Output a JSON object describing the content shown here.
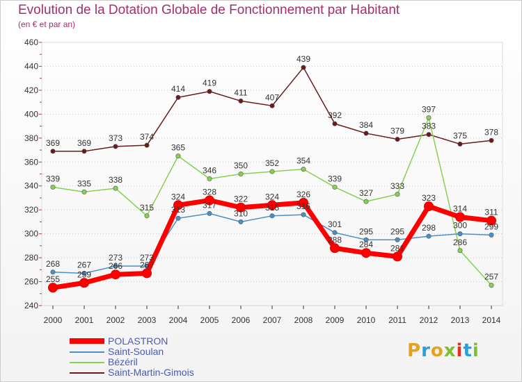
{
  "header": {
    "title": "Evolution de la Dotation Globale de Fonctionnement par Habitant",
    "subtitle": "(en € et par an)"
  },
  "logo": {
    "text": "Proxiti",
    "colors": [
      "#e8a020",
      "#2aa0d8",
      "#e8a020",
      "#7cc030",
      "#e83020",
      "#2aa0d8",
      "#7cc030"
    ]
  },
  "chart_data": {
    "type": "line",
    "title": "Evolution de la Dotation Globale de Fonctionnement par Habitant",
    "subtitle": "(en € et par an)",
    "xlabel": "",
    "ylabel": "",
    "x": [
      "2000",
      "2001",
      "2002",
      "2003",
      "2004",
      "2005",
      "2006",
      "2007",
      "2008",
      "2009",
      "2010",
      "2011",
      "2012",
      "2013",
      "2014"
    ],
    "yticks": [
      240,
      260,
      280,
      300,
      320,
      340,
      360,
      380,
      400,
      420,
      440,
      460
    ],
    "ylim": [
      240,
      460
    ],
    "grid": "horizontal dotted",
    "legend_position": "bottom-left",
    "series": [
      {
        "name": "POLASTRON",
        "color": "#ff0000",
        "values": [
          255,
          259,
          266,
          267,
          324,
          328,
          322,
          324,
          326,
          288,
          284,
          281,
          323,
          314,
          311
        ],
        "labels": [
          "255",
          "259",
          "266",
          "267",
          "324",
          "328",
          "322",
          "324",
          "326",
          "288",
          "284",
          "281",
          "323",
          "314",
          "311"
        ]
      },
      {
        "name": "Saint-Soulan",
        "color": "#4a90c8",
        "values": [
          268,
          267,
          273,
          273,
          313,
          317,
          310,
          315,
          316,
          301,
          295,
          295,
          298,
          300,
          299
        ],
        "labels": [
          "268",
          "267",
          "273",
          "273",
          "313",
          "317",
          "310",
          "315",
          "316",
          "301",
          "295",
          "295",
          "298",
          "300",
          "299"
        ]
      },
      {
        "name": "Bézéril",
        "color": "#88d050",
        "values": [
          339,
          335,
          338,
          315,
          365,
          346,
          350,
          352,
          354,
          339,
          327,
          333,
          397,
          286,
          257
        ],
        "labels": [
          "339",
          "335",
          "338",
          "315",
          "365",
          "346",
          "350",
          "352",
          "354",
          "339",
          "327",
          "333",
          "397",
          "286",
          "257"
        ]
      },
      {
        "name": "Saint-Martin-Gimois",
        "color": "#6b1a1a",
        "values": [
          369,
          369,
          373,
          374,
          414,
          419,
          411,
          407,
          439,
          392,
          384,
          379,
          383,
          375,
          378
        ],
        "labels": [
          "369",
          "369",
          "373",
          "374",
          "414",
          "419",
          "411",
          "407",
          "439",
          "392",
          "384",
          "379",
          "383",
          "375",
          "378"
        ]
      }
    ]
  }
}
